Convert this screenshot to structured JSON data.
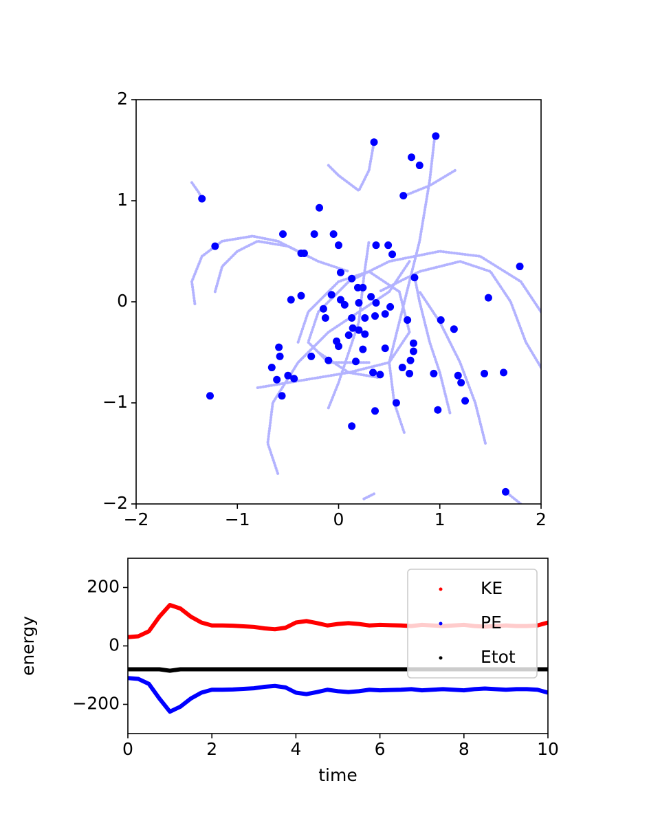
{
  "chart_data": [
    {
      "type": "scatter",
      "xlim": [
        -2,
        2
      ],
      "ylim": [
        -2,
        2
      ],
      "xticks": [
        {
          "value": -2,
          "label": "−2"
        },
        {
          "value": -1,
          "label": "−1"
        },
        0,
        1,
        2
      ],
      "yticks": [
        {
          "value": -2,
          "label": "−2"
        },
        {
          "value": -1,
          "label": "−1"
        },
        0,
        1,
        2
      ],
      "trails": [
        {
          "color": "#b3b3ff",
          "x": [
            -1.45,
            -1.38,
            -1.35
          ],
          "y": [
            1.18,
            1.08,
            1.02
          ]
        },
        {
          "color": "#b3b3ff",
          "x": [
            -1.42,
            -1.45,
            -1.35,
            -1.15,
            -0.85,
            -0.6,
            -0.4
          ],
          "y": [
            -0.02,
            0.2,
            0.45,
            0.6,
            0.65,
            0.6,
            0.5
          ]
        },
        {
          "color": "#b3b3ff",
          "x": [
            -1.22,
            -1.15,
            -1.0,
            -0.8,
            -0.5,
            -0.2,
            0.1
          ],
          "y": [
            0.1,
            0.35,
            0.5,
            0.6,
            0.55,
            0.4,
            0.3
          ]
        },
        {
          "color": "#b3b3ff",
          "x": [
            -0.6,
            -0.7,
            -0.65,
            -0.4,
            -0.1,
            0.2,
            0.5,
            0.7
          ],
          "y": [
            -1.7,
            -1.4,
            -1.0,
            -0.6,
            -0.3,
            -0.1,
            0.1,
            0.4
          ]
        },
        {
          "color": "#b3b3ff",
          "x": [
            0.95,
            0.9,
            0.8,
            0.7,
            0.6,
            0.5,
            0.55,
            0.65
          ],
          "y": [
            1.64,
            1.2,
            0.6,
            0.2,
            -0.2,
            -0.6,
            -1.0,
            -1.3
          ]
        },
        {
          "color": "#b3b3ff",
          "x": [
            1.15,
            0.9,
            0.65
          ],
          "y": [
            1.3,
            1.15,
            1.05
          ]
        },
        {
          "color": "#b3b3ff",
          "x": [
            0.35,
            0.3,
            0.2,
            0.0,
            -0.1
          ],
          "y": [
            1.58,
            1.3,
            1.1,
            1.25,
            1.35
          ]
        },
        {
          "color": "#b3b3ff",
          "x": [
            2.0,
            1.8,
            1.4,
            1.0,
            0.5,
            0.1,
            -0.2,
            -0.3,
            -0.1,
            0.3
          ],
          "y": [
            -0.1,
            0.2,
            0.45,
            0.5,
            0.4,
            0.2,
            -0.1,
            -0.4,
            -0.6,
            -0.6
          ]
        },
        {
          "color": "#b3b3ff",
          "x": [
            2.0,
            1.85,
            1.7,
            1.5,
            1.2,
            0.8,
            0.4
          ],
          "y": [
            -0.65,
            -0.4,
            0.0,
            0.3,
            0.4,
            0.3,
            0.1
          ]
        },
        {
          "color": "#b3b3ff",
          "x": [
            1.45,
            1.35,
            1.2,
            1.0,
            0.8
          ],
          "y": [
            -1.4,
            -1.0,
            -0.6,
            -0.2,
            0.1
          ]
        },
        {
          "color": "#b3b3ff",
          "x": [
            0.25,
            0.35
          ],
          "y": [
            -1.95,
            -1.9
          ]
        },
        {
          "color": "#b3b3ff",
          "x": [
            1.65,
            1.8
          ],
          "y": [
            -1.88,
            -2.0
          ]
        },
        {
          "color": "#b3b3ff",
          "x": [
            -0.8,
            -0.5,
            -0.2,
            0.1,
            0.4
          ],
          "y": [
            -0.85,
            -0.8,
            -0.75,
            -0.7,
            -0.75
          ]
        },
        {
          "color": "#b3b3ff",
          "x": [
            -0.4,
            -0.3,
            0.0,
            0.3,
            0.6,
            0.7,
            0.5,
            0.1,
            -0.2
          ],
          "y": [
            -0.4,
            -0.1,
            0.2,
            0.3,
            0.1,
            -0.3,
            -0.6,
            -0.7,
            -0.5
          ]
        },
        {
          "color": "#b3b3ff",
          "x": [
            -0.1,
            0.0,
            0.1,
            0.2,
            0.25,
            0.3
          ],
          "y": [
            -1.05,
            -0.8,
            -0.5,
            -0.2,
            0.25,
            0.6
          ]
        },
        {
          "color": "#b3b3ff",
          "x": [
            0.75,
            0.8,
            0.9,
            1.0,
            1.1
          ],
          "y": [
            0.25,
            0.0,
            -0.4,
            -0.7,
            -1.1
          ]
        }
      ],
      "series": [
        {
          "color": "#0000ff",
          "x": [
            0.96,
            0.35,
            0.72,
            0.8,
            0.64,
            -1.35,
            -0.19,
            -1.22,
            -0.55,
            -0.24,
            -0.05,
            0.0,
            0.37,
            0.49,
            0.53,
            -0.37,
            -0.34,
            1.79,
            0.02,
            0.75,
            0.13,
            0.19,
            0.24,
            -0.47,
            -0.37,
            -0.07,
            0.02,
            0.06,
            0.2,
            0.32,
            0.37,
            0.51,
            1.48,
            -0.15,
            -0.13,
            0.13,
            0.26,
            0.36,
            0.46,
            0.68,
            1.01,
            1.14,
            0.14,
            0.2,
            0.26,
            0.1,
            -0.02,
            0.0,
            0.24,
            0.46,
            0.74,
            0.74,
            -0.59,
            -0.58,
            -0.27,
            -0.1,
            0.17,
            0.71,
            -0.66,
            0.63,
            0.34,
            0.41,
            0.7,
            0.94,
            1.18,
            1.44,
            1.63,
            -0.5,
            -0.44,
            -0.61,
            1.21,
            -0.56,
            -1.27,
            1.25,
            0.57,
            0.36,
            0.98,
            0.13,
            1.65
          ],
          "y": [
            1.64,
            1.58,
            1.43,
            1.35,
            1.05,
            1.02,
            0.93,
            0.55,
            0.67,
            0.67,
            0.67,
            0.56,
            0.56,
            0.56,
            0.47,
            0.48,
            0.48,
            0.35,
            0.29,
            0.24,
            0.23,
            0.14,
            0.14,
            0.02,
            0.06,
            0.07,
            0.02,
            -0.03,
            -0.01,
            0.05,
            -0.01,
            -0.05,
            0.04,
            -0.07,
            -0.16,
            -0.16,
            -0.16,
            -0.14,
            -0.12,
            -0.18,
            -0.18,
            -0.27,
            -0.26,
            -0.28,
            -0.32,
            -0.33,
            -0.39,
            -0.44,
            -0.47,
            -0.46,
            -0.41,
            -0.49,
            -0.45,
            -0.54,
            -0.54,
            -0.58,
            -0.59,
            -0.58,
            -0.65,
            -0.65,
            -0.7,
            -0.72,
            -0.71,
            -0.71,
            -0.73,
            -0.71,
            -0.7,
            -0.73,
            -0.76,
            -0.77,
            -0.8,
            -0.93,
            -0.93,
            -0.98,
            -1.0,
            -1.08,
            -1.07,
            -1.23,
            -1.88
          ]
        }
      ]
    },
    {
      "type": "line",
      "xlabel": "time",
      "ylabel": "energy",
      "xlim": [
        0,
        10
      ],
      "ylim": [
        -300,
        300
      ],
      "xticks": [
        0,
        2,
        4,
        6,
        8,
        10
      ],
      "yticks": [
        {
          "value": -200,
          "label": "−200"
        },
        0,
        200
      ],
      "legend": "upper right",
      "x": [
        0,
        0.25,
        0.5,
        0.75,
        1,
        1.25,
        1.5,
        1.75,
        2,
        2.25,
        2.5,
        2.75,
        3,
        3.25,
        3.5,
        3.75,
        4,
        4.25,
        4.5,
        4.75,
        5,
        5.25,
        5.5,
        5.75,
        6,
        6.25,
        6.5,
        6.75,
        7,
        7.25,
        7.5,
        7.75,
        8,
        8.25,
        8.5,
        8.75,
        9,
        9.25,
        9.5,
        9.75,
        10
      ],
      "series": [
        {
          "name": "KE",
          "color": "#ff0000",
          "values": [
            30,
            33,
            50,
            100,
            140,
            128,
            100,
            80,
            70,
            70,
            69,
            67,
            65,
            60,
            57,
            62,
            80,
            85,
            78,
            70,
            75,
            78,
            75,
            70,
            72,
            71,
            70,
            68,
            72,
            70,
            68,
            70,
            72,
            68,
            66,
            68,
            70,
            68,
            68,
            70,
            80
          ]
        },
        {
          "name": "PE",
          "color": "#0000ff",
          "values": [
            -110,
            -113,
            -130,
            -180,
            -225,
            -208,
            -180,
            -160,
            -150,
            -150,
            -149,
            -147,
            -145,
            -140,
            -137,
            -142,
            -160,
            -165,
            -158,
            -150,
            -155,
            -158,
            -155,
            -150,
            -152,
            -151,
            -150,
            -148,
            -152,
            -150,
            -148,
            -150,
            -152,
            -148,
            -146,
            -148,
            -150,
            -148,
            -148,
            -150,
            -160
          ]
        },
        {
          "name": "Etot",
          "color": "#000000",
          "values": [
            -80,
            -80,
            -80,
            -80,
            -85,
            -80,
            -80,
            -80,
            -80,
            -80,
            -80,
            -80,
            -80,
            -80,
            -80,
            -80,
            -80,
            -80,
            -80,
            -80,
            -80,
            -80,
            -80,
            -80,
            -80,
            -80,
            -80,
            -80,
            -80,
            -80,
            -80,
            -80,
            -80,
            -80,
            -80,
            -80,
            -80,
            -80,
            -80,
            -80,
            -80
          ]
        }
      ]
    }
  ]
}
